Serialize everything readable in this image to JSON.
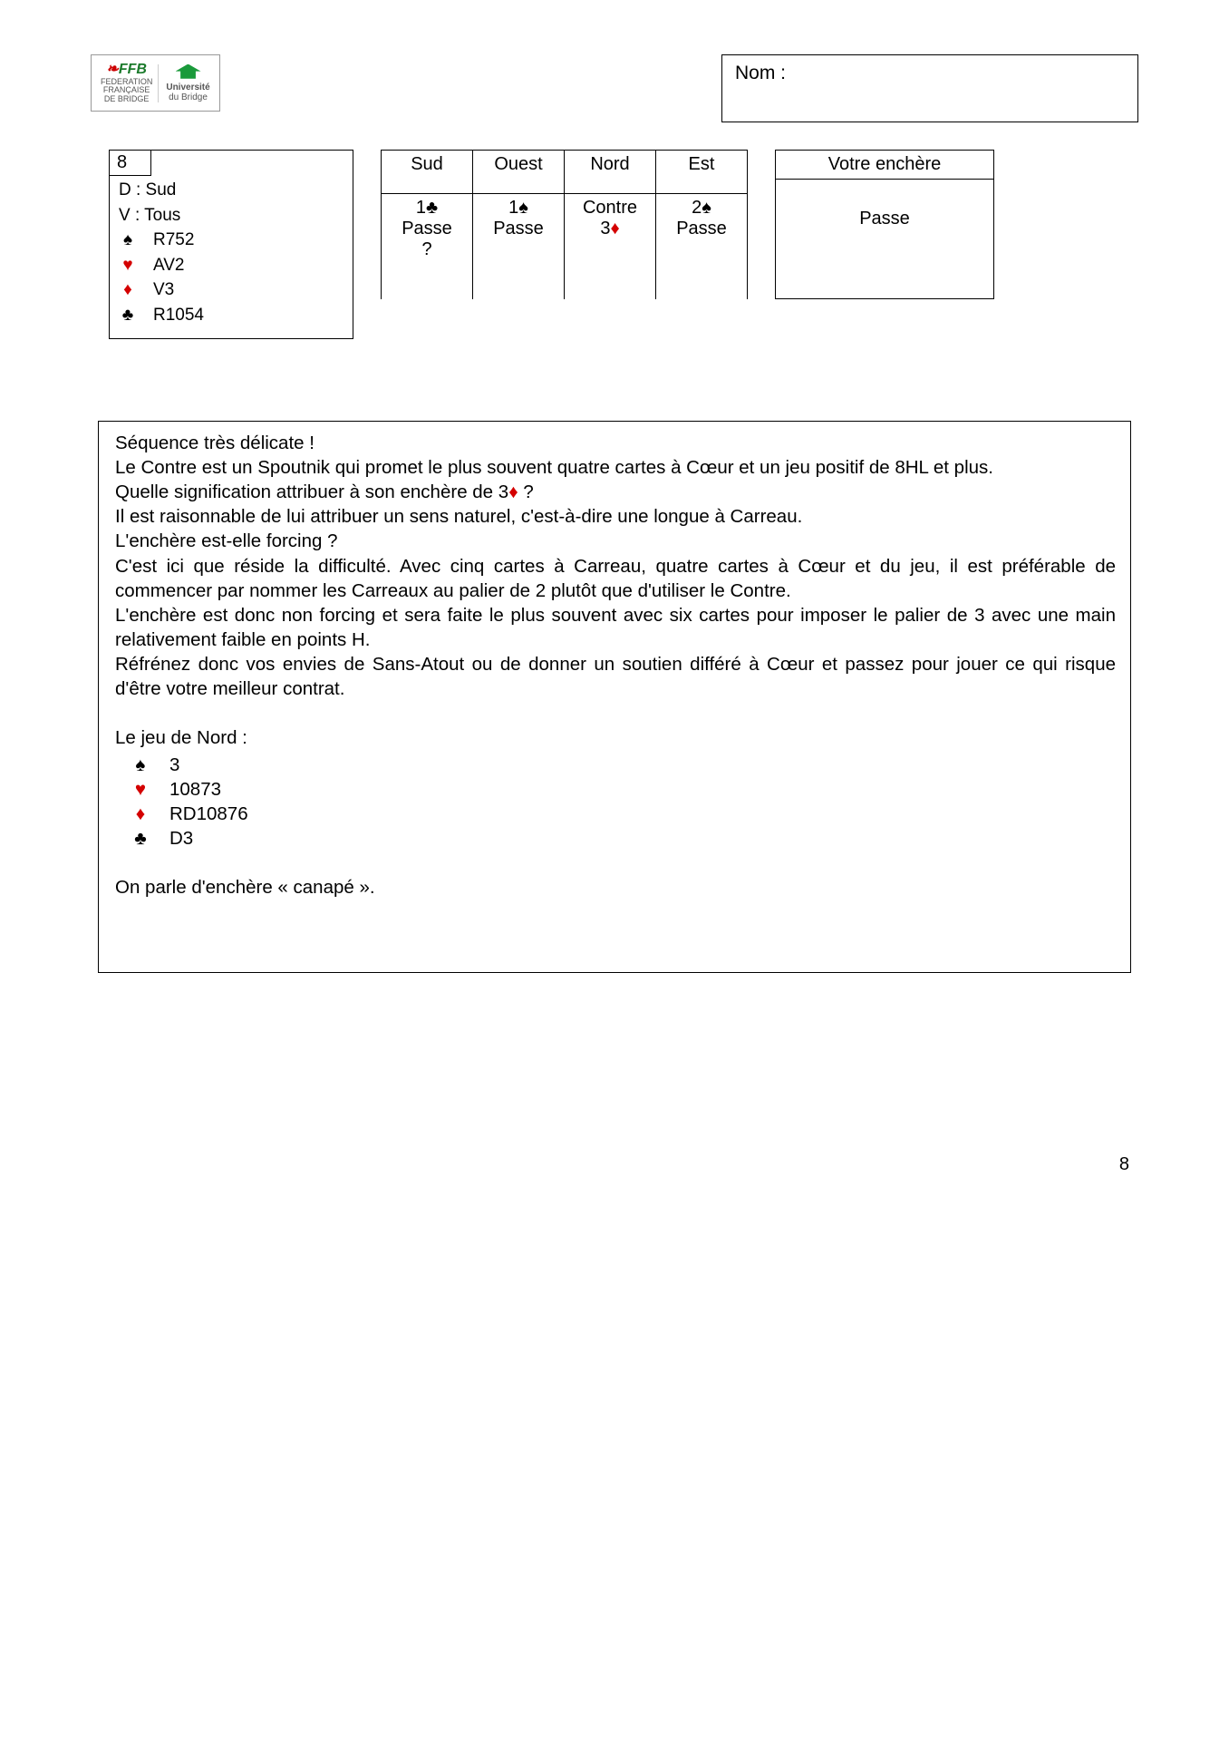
{
  "header": {
    "nom_label": "Nom :",
    "ffb_line1": "FEDERATION",
    "ffb_line2": "FRANÇAISE",
    "ffb_line3": "DE BRIDGE",
    "univ_line1": "Université",
    "univ_line2": "du Bridge"
  },
  "deal": {
    "number": "8",
    "dealer": "D : Sud",
    "vuln": "V : Tous",
    "hand": {
      "spades": "R752",
      "hearts": "AV2",
      "diamonds": "V3",
      "clubs": "R1054"
    }
  },
  "suits": {
    "spade": "♠",
    "heart": "♥",
    "diamond": "♦",
    "club": "♣"
  },
  "bidding": {
    "headers": [
      "Sud",
      "Ouest",
      "Nord",
      "Est"
    ],
    "r1": {
      "sud": {
        "pre": "1",
        "suit": "♣",
        "suit_color": "black"
      },
      "ouest": {
        "pre": "1",
        "suit": "♠",
        "suit_color": "black"
      },
      "nord": {
        "text": "Contre"
      },
      "est": {
        "pre": "2",
        "suit": "♠",
        "suit_color": "black"
      }
    },
    "r2": {
      "sud": {
        "text": "Passe"
      },
      "ouest": {
        "text": "Passe"
      },
      "nord": {
        "pre": "3",
        "suit": "♦",
        "suit_color": "red"
      },
      "est": {
        "text": "Passe"
      }
    },
    "r3": {
      "sud": {
        "text": "?"
      }
    }
  },
  "enchere": {
    "title": "Votre enchère",
    "answer": "Passe"
  },
  "explain": {
    "p1": "Séquence très délicate !",
    "p2": "Le Contre est un Spoutnik qui promet le plus souvent quatre cartes à Cœur et un jeu positif de 8HL et plus.",
    "p3a": "Quelle signification attribuer à son enchère de 3",
    "p3b": " ?",
    "p4": "Il est raisonnable de lui attribuer un sens naturel, c'est-à-dire une longue à Carreau.",
    "p5": "L'enchère est-elle forcing ?",
    "p6": "C'est ici que réside la difficulté. Avec cinq cartes à Carreau, quatre cartes à Cœur et du jeu, il est préférable de commencer par nommer les Carreaux au palier de 2 plutôt que d'utiliser le Contre.",
    "p7": "L'enchère est donc non forcing et sera faite le plus souvent avec six cartes pour imposer le palier de 3 avec une main relativement faible en points H.",
    "p8": "Réfrénez donc vos envies de Sans-Atout ou de donner un soutien différé à Cœur et passez pour jouer ce qui risque d'être votre meilleur contrat.",
    "north_label": "Le jeu de Nord :",
    "north": {
      "spades": "3",
      "hearts": "10873",
      "diamonds": "RD10876",
      "clubs": "D3"
    },
    "footer": "On parle d'enchère « canapé »."
  },
  "page_number": "8"
}
